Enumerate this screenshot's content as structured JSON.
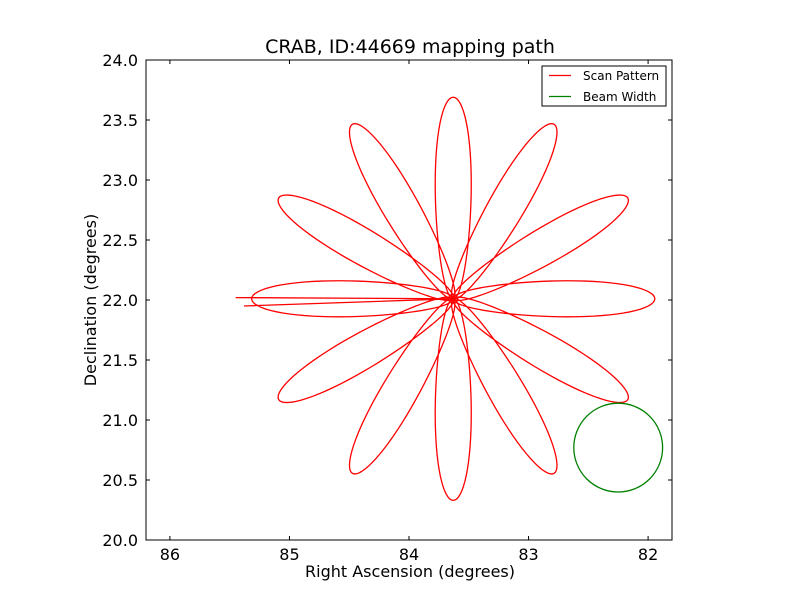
{
  "chart_data": {
    "type": "line",
    "title": "CRAB, ID:44669 mapping path",
    "xlabel": "Right Ascension (degrees)",
    "ylabel": "Declination (degrees)",
    "xlim": [
      86.2,
      81.8
    ],
    "ylim": [
      20.0,
      24.0
    ],
    "x_inverted": true,
    "xticks": [
      86,
      85,
      84,
      83,
      82
    ],
    "xtick_labels": [
      "86",
      "85",
      "84",
      "83",
      "82"
    ],
    "yticks": [
      20.0,
      20.5,
      21.0,
      21.5,
      22.0,
      22.5,
      23.0,
      23.5,
      24.0
    ],
    "ytick_labels": [
      "20.0",
      "20.5",
      "21.0",
      "21.5",
      "22.0",
      "22.5",
      "23.0",
      "23.5",
      "24.0"
    ],
    "grid": false,
    "legend_position": "top-right",
    "series": [
      {
        "name": "Scan Pattern",
        "color": "#ff0000",
        "shape": "rose",
        "center": [
          83.63,
          22.01
        ],
        "petals": 12,
        "petal_length": 1.68,
        "petal_half_width": 0.17,
        "petal_angle_offset_deg": 90,
        "path_start": [
          85.45,
          22.02
        ],
        "path_end": [
          85.38,
          21.95
        ]
      },
      {
        "name": "Beam Width",
        "color": "#008000",
        "shape": "circle",
        "center": [
          82.25,
          20.77
        ],
        "radius": 0.37
      }
    ]
  }
}
